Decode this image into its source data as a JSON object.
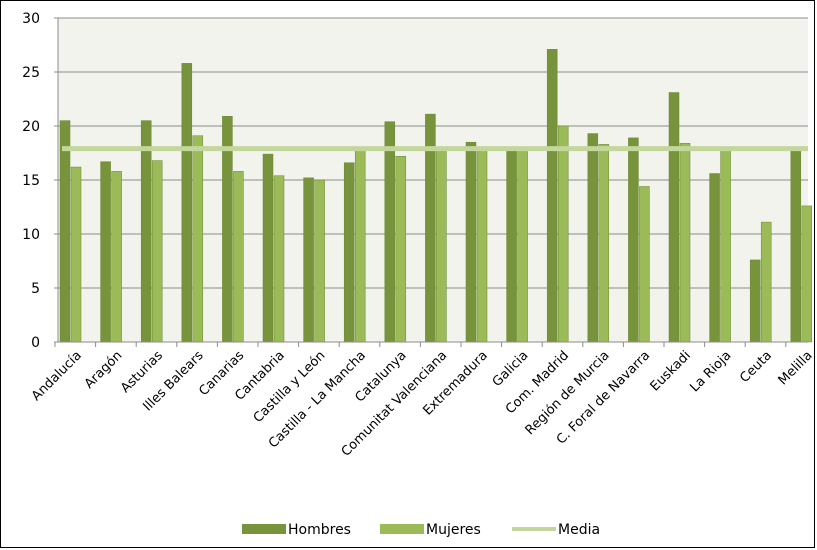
{
  "chart_data": {
    "type": "bar",
    "categories": [
      "Andalucía",
      "Aragón",
      "Asturias",
      "Illes Balears",
      "Canarias",
      "Cantabria",
      "Castilla y León",
      "Castilla - La Mancha",
      "Catalunya",
      "Comunitat Valenciana",
      "Extremadura",
      "Galicia",
      "Com. Madrid",
      "Región de Murcia",
      "C. Foral de Navarra",
      "Euskadi",
      "La Rioja",
      "Ceuta",
      "Melilla"
    ],
    "series": [
      {
        "name": "Hombres",
        "color": "#77933c",
        "values": [
          20.5,
          16.7,
          20.5,
          25.8,
          20.9,
          17.4,
          15.2,
          16.6,
          20.4,
          21.1,
          18.5,
          18.0,
          27.1,
          19.3,
          18.9,
          23.1,
          15.6,
          7.6,
          18.0
        ]
      },
      {
        "name": "Mujeres",
        "color": "#9bbb59",
        "values": [
          16.2,
          15.8,
          16.8,
          19.1,
          15.8,
          15.4,
          15.0,
          18.0,
          17.2,
          18.0,
          18.0,
          18.0,
          20.0,
          18.3,
          14.4,
          18.4,
          18.0,
          11.1,
          12.6
        ]
      }
    ],
    "reference_line": {
      "name": "Media",
      "color": "#c3d69b",
      "value": 17.9
    },
    "ylim": [
      0,
      30
    ],
    "yticks": [
      0,
      5,
      10,
      15,
      20,
      25,
      30
    ],
    "grid": true,
    "legend_position": "bottom",
    "plot_background": "#f1f3ec",
    "title": "",
    "xlabel": "",
    "ylabel": ""
  }
}
